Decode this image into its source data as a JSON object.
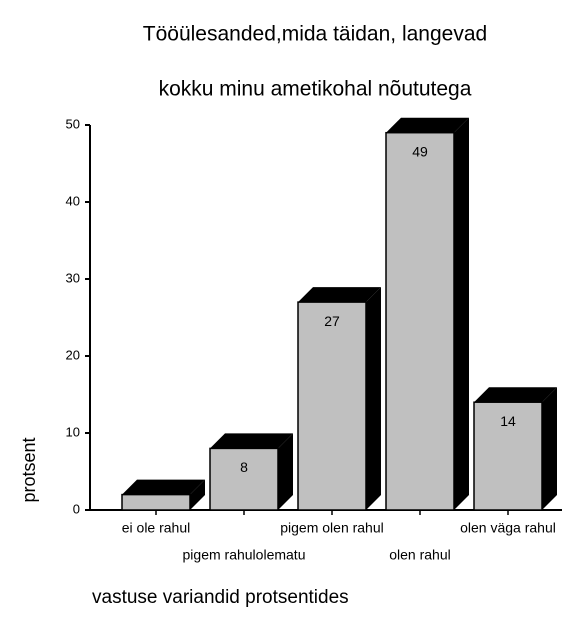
{
  "chart_data": {
    "type": "bar3d",
    "title": [
      "Tööülesanded,mida täidan, langevad",
      "kokku minu ametikohal nõututega"
    ],
    "x_label": "vastuse variandid protsentides",
    "y_label": "protsent",
    "categories": [
      "ei ole rahul",
      "pigem rahulolematu",
      "pigem olen rahul",
      "olen rahul",
      "olen väga rahul"
    ],
    "values": [
      2,
      8,
      27,
      49,
      14
    ],
    "value_labels": [
      null,
      "8",
      "27",
      "49",
      "14"
    ],
    "color": "#c0c0c0",
    "ylim": [
      0,
      50
    ],
    "yticks": [
      0,
      10,
      20,
      30,
      40,
      50
    ]
  }
}
